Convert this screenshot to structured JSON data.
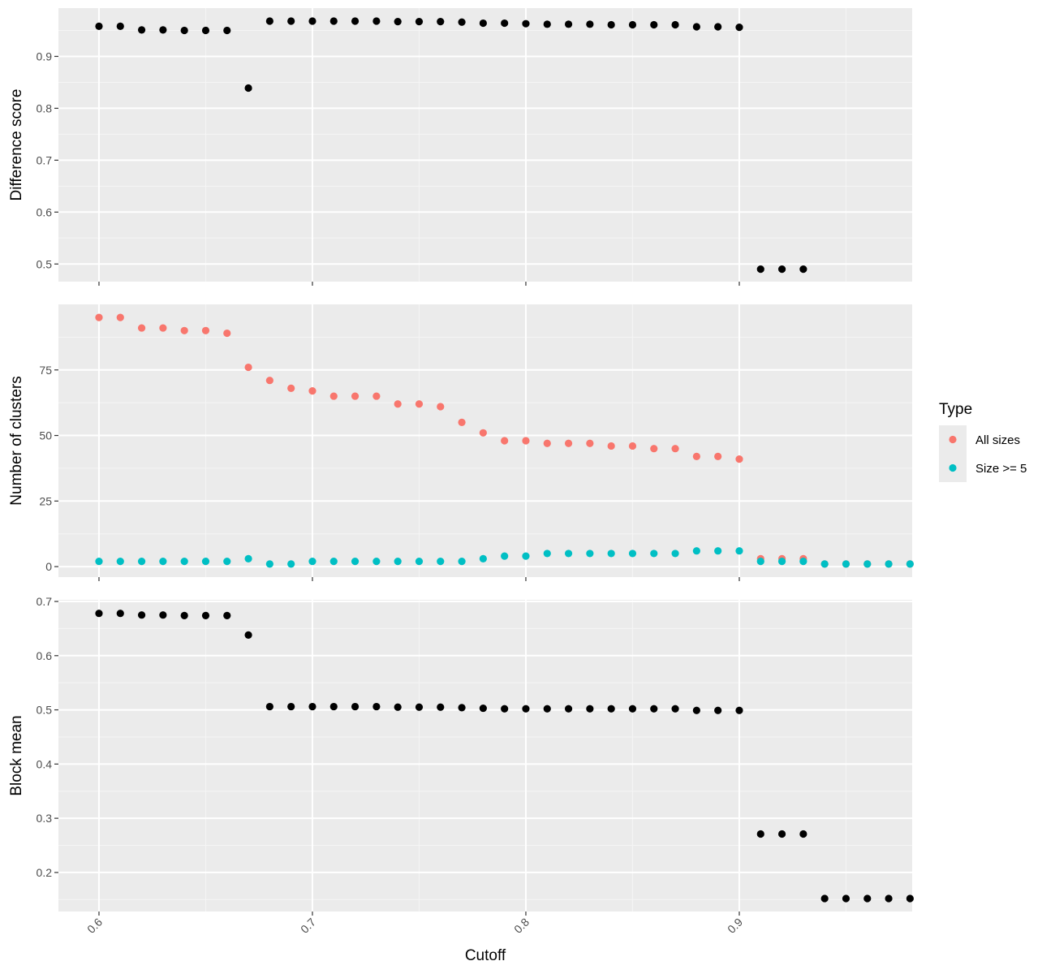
{
  "chart_data": {
    "type": "scatter",
    "xlabel": "Cutoff",
    "x_ticks": [
      0.6,
      0.7,
      0.8,
      0.9
    ],
    "x_tick_labels": [
      "0.6",
      "0.7",
      "0.8",
      "0.9"
    ],
    "xlim": [
      0.581,
      0.981
    ],
    "grid": true,
    "legend": {
      "title": "Type",
      "position": "right",
      "entries": [
        {
          "label": "All sizes",
          "color": "#F8766D"
        },
        {
          "label": "Size >= 5",
          "color": "#00BFC4"
        }
      ]
    },
    "panels": [
      {
        "id": "difference",
        "ylabel": "Difference score",
        "ylim": [
          0.466,
          0.993
        ],
        "y_ticks": [
          0.5,
          0.6,
          0.7,
          0.8,
          0.9
        ],
        "y_tick_labels": [
          "0.5",
          "0.6",
          "0.7",
          "0.8",
          "0.9"
        ],
        "series": [
          {
            "color": "#000000",
            "x": [
              0.6,
              0.61,
              0.62,
              0.63,
              0.64,
              0.65,
              0.66,
              0.67,
              0.68,
              0.69,
              0.7,
              0.71,
              0.72,
              0.73,
              0.74,
              0.75,
              0.76,
              0.77,
              0.78,
              0.79,
              0.8,
              0.81,
              0.82,
              0.83,
              0.84,
              0.85,
              0.86,
              0.87,
              0.88,
              0.89,
              0.9,
              0.91,
              0.92,
              0.93
            ],
            "y": [
              0.958,
              0.958,
              0.951,
              0.951,
              0.95,
              0.95,
              0.95,
              0.839,
              0.968,
              0.968,
              0.968,
              0.968,
              0.968,
              0.968,
              0.967,
              0.967,
              0.967,
              0.966,
              0.964,
              0.964,
              0.963,
              0.962,
              0.962,
              0.962,
              0.961,
              0.961,
              0.961,
              0.961,
              0.957,
              0.957,
              0.956,
              0.49,
              0.49,
              0.49
            ]
          }
        ]
      },
      {
        "id": "clusters",
        "ylabel": "Number of clusters",
        "ylim": [
          -4,
          100
        ],
        "y_ticks": [
          0,
          25,
          50,
          75
        ],
        "y_tick_labels": [
          "0",
          "25",
          "50",
          "75"
        ],
        "series": [
          {
            "name": "All sizes",
            "color": "#F8766D",
            "x": [
              0.6,
              0.61,
              0.62,
              0.63,
              0.64,
              0.65,
              0.66,
              0.67,
              0.68,
              0.69,
              0.7,
              0.71,
              0.72,
              0.73,
              0.74,
              0.75,
              0.76,
              0.77,
              0.78,
              0.79,
              0.8,
              0.81,
              0.82,
              0.83,
              0.84,
              0.85,
              0.86,
              0.87,
              0.88,
              0.89,
              0.9,
              0.91,
              0.92,
              0.93,
              0.94,
              0.95,
              0.96,
              0.97,
              0.98
            ],
            "y": [
              95,
              95,
              91,
              91,
              90,
              90,
              89,
              76,
              71,
              68,
              67,
              65,
              65,
              65,
              62,
              62,
              61,
              55,
              51,
              48,
              48,
              47,
              47,
              47,
              46,
              46,
              45,
              45,
              42,
              42,
              41,
              3,
              3,
              3,
              1,
              1,
              1,
              1,
              1
            ]
          },
          {
            "name": "Size >= 5",
            "color": "#00BFC4",
            "x": [
              0.6,
              0.61,
              0.62,
              0.63,
              0.64,
              0.65,
              0.66,
              0.67,
              0.68,
              0.69,
              0.7,
              0.71,
              0.72,
              0.73,
              0.74,
              0.75,
              0.76,
              0.77,
              0.78,
              0.79,
              0.8,
              0.81,
              0.82,
              0.83,
              0.84,
              0.85,
              0.86,
              0.87,
              0.88,
              0.89,
              0.9,
              0.91,
              0.92,
              0.93,
              0.94,
              0.95,
              0.96,
              0.97,
              0.98
            ],
            "y": [
              2,
              2,
              2,
              2,
              2,
              2,
              2,
              3,
              1,
              1,
              2,
              2,
              2,
              2,
              2,
              2,
              2,
              2,
              3,
              4,
              4,
              5,
              5,
              5,
              5,
              5,
              5,
              5,
              6,
              6,
              6,
              2,
              2,
              2,
              1,
              1,
              1,
              1,
              1
            ]
          }
        ]
      },
      {
        "id": "blockmean",
        "ylabel": "Block mean",
        "ylim": [
          0.128,
          0.703
        ],
        "y_ticks": [
          0.2,
          0.3,
          0.4,
          0.5,
          0.6,
          0.7
        ],
        "y_tick_labels": [
          "0.2",
          "0.3",
          "0.4",
          "0.5",
          "0.6",
          "0.7"
        ],
        "series": [
          {
            "color": "#000000",
            "x": [
              0.6,
              0.61,
              0.62,
              0.63,
              0.64,
              0.65,
              0.66,
              0.67,
              0.68,
              0.69,
              0.7,
              0.71,
              0.72,
              0.73,
              0.74,
              0.75,
              0.76,
              0.77,
              0.78,
              0.79,
              0.8,
              0.81,
              0.82,
              0.83,
              0.84,
              0.85,
              0.86,
              0.87,
              0.88,
              0.89,
              0.9,
              0.91,
              0.92,
              0.93,
              0.94,
              0.95,
              0.96,
              0.97,
              0.98
            ],
            "y": [
              0.678,
              0.678,
              0.675,
              0.675,
              0.674,
              0.674,
              0.674,
              0.638,
              0.506,
              0.506,
              0.506,
              0.506,
              0.506,
              0.506,
              0.505,
              0.505,
              0.505,
              0.504,
              0.503,
              0.502,
              0.502,
              0.502,
              0.502,
              0.502,
              0.502,
              0.502,
              0.502,
              0.502,
              0.499,
              0.499,
              0.499,
              0.271,
              0.271,
              0.271,
              0.152,
              0.152,
              0.152,
              0.152,
              0.152
            ]
          }
        ]
      }
    ]
  }
}
